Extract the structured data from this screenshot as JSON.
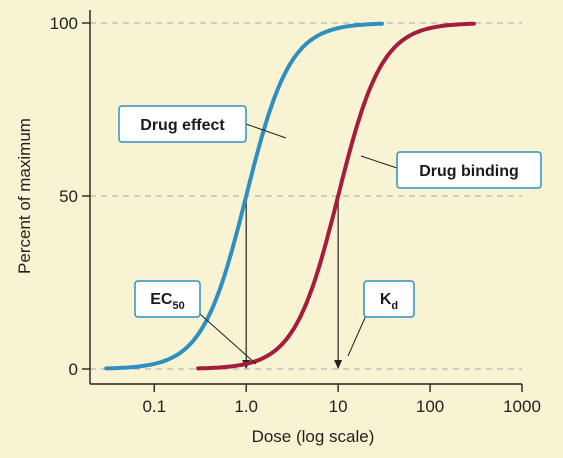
{
  "chart_data": {
    "type": "line",
    "x_scale": "log",
    "xlabel": "Dose (log scale)",
    "ylabel": "Percent of maximum",
    "xlim": [
      0.02,
      1000
    ],
    "ylim": [
      0,
      100
    ],
    "x_ticks": [
      {
        "value": 0.1,
        "label": "0.1"
      },
      {
        "value": 1,
        "label": "1.0"
      },
      {
        "value": 10,
        "label": "10"
      },
      {
        "value": 100,
        "label": "100"
      },
      {
        "value": 1000,
        "label": "1000"
      }
    ],
    "y_ticks": [
      {
        "value": 0,
        "label": "0"
      },
      {
        "value": 50,
        "label": "50"
      },
      {
        "value": 100,
        "label": "100"
      }
    ],
    "grid": "horizontal dashed at 0, 50, 100",
    "series": [
      {
        "name": "Drug effect",
        "color": "#2f8fc0",
        "x_range": [
          0.03,
          30
        ],
        "midpoint": 1.0,
        "x": [
          0.03,
          0.05,
          0.1,
          0.2,
          0.3,
          0.5,
          0.7,
          1.0,
          1.5,
          2,
          3,
          5,
          10,
          20,
          30
        ],
        "y": [
          1,
          2,
          7,
          17,
          26,
          38,
          45,
          50,
          61,
          70,
          80,
          91,
          98,
          100,
          100
        ]
      },
      {
        "name": "Drug binding",
        "color": "#a51c3f",
        "x_range": [
          0.3,
          300
        ],
        "midpoint": 10,
        "x": [
          0.3,
          0.5,
          1,
          2,
          3,
          5,
          7,
          10,
          15,
          20,
          30,
          50,
          100,
          200,
          300
        ],
        "y": [
          1,
          2,
          7,
          17,
          26,
          38,
          45,
          50,
          61,
          70,
          80,
          91,
          98,
          100,
          100
        ]
      }
    ],
    "annotations": [
      {
        "text": "Drug effect",
        "series": "Drug effect",
        "position": "left of curve"
      },
      {
        "text": "Drug binding",
        "series": "Drug binding",
        "position": "right of curve"
      },
      {
        "text_main": "EC",
        "text_sub": "50",
        "x": 1.0,
        "y": 0
      },
      {
        "text_main": "K",
        "text_sub": "d",
        "x": 10,
        "y": 0
      }
    ]
  },
  "colors": {
    "background": "#f8f4d3",
    "axis": "#222222",
    "gridline": "#a8a8a8",
    "callout_border": "#2f8fc0"
  }
}
